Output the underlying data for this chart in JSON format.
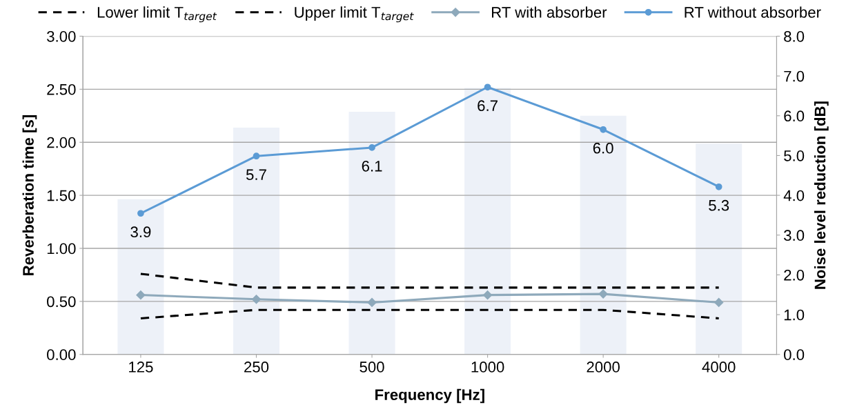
{
  "chart_data": {
    "type": "line",
    "xlabel": "Frequency [Hz]",
    "ylabel": "Reverberation time [s]",
    "y2label": "Noise level reduction [dB]",
    "categories": [
      "125",
      "250",
      "500",
      "1000",
      "2000",
      "4000"
    ],
    "ylim": [
      0,
      3
    ],
    "yticks": [
      {
        "value": 0,
        "label": "0.00"
      },
      {
        "value": 0.5,
        "label": "0.50"
      },
      {
        "value": 1,
        "label": "1.00"
      },
      {
        "value": 1.5,
        "label": "1.50"
      },
      {
        "value": 2,
        "label": "2.00"
      },
      {
        "value": 2.5,
        "label": "2.50"
      },
      {
        "value": 3,
        "label": "3.00"
      }
    ],
    "y2lim": [
      0,
      8
    ],
    "y2ticks": [
      {
        "value": 0,
        "label": "0.0"
      },
      {
        "value": 1,
        "label": "1.0"
      },
      {
        "value": 2,
        "label": "2.0"
      },
      {
        "value": 3,
        "label": "3.0"
      },
      {
        "value": 4,
        "label": "4.0"
      },
      {
        "value": 5,
        "label": "5.0"
      },
      {
        "value": 6,
        "label": "6.0"
      },
      {
        "value": 7,
        "label": "7.0"
      },
      {
        "value": 8,
        "label": "8.0"
      }
    ],
    "grid": "y",
    "legend": "top",
    "series": [
      {
        "type": "bar",
        "axis": "y2",
        "color": "#edf1f8",
        "values": [
          3.9,
          5.7,
          6.1,
          6.7,
          6.0,
          5.3
        ],
        "value_labels": [
          "3.9",
          "5.7",
          "6.1",
          "6.7",
          "6.0",
          "5.3"
        ]
      },
      {
        "name": "Lower limit T$_{target}$",
        "color": "#000000",
        "line_style": "dashed",
        "marker": "none",
        "values": [
          0.34,
          0.42,
          0.42,
          0.42,
          0.42,
          0.34
        ]
      },
      {
        "name": "Upper limit T$_{target}$",
        "color": "#000000",
        "line_style": "dashed",
        "marker": "none",
        "values": [
          0.76,
          0.63,
          0.63,
          0.63,
          0.63,
          0.63
        ]
      },
      {
        "name": "RT with absorber",
        "color": "#8ea9bb",
        "line_style": "solid",
        "marker": "diamond",
        "values": [
          0.56,
          0.52,
          0.49,
          0.56,
          0.57,
          0.49
        ]
      },
      {
        "name": "RT without absorber",
        "color": "#5b9bd5",
        "line_style": "solid",
        "marker": "circle",
        "values": [
          1.33,
          1.87,
          1.95,
          2.52,
          2.12,
          1.58
        ]
      }
    ]
  }
}
